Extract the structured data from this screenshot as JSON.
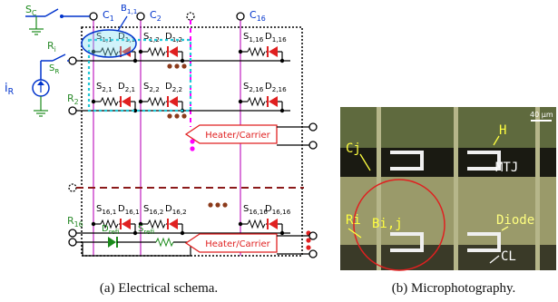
{
  "schematic": {
    "column_switch": {
      "base": "S",
      "sub": "C"
    },
    "row_switch": {
      "base": "S",
      "sub": "R"
    },
    "current": {
      "base": "i",
      "sub": "R"
    },
    "bit_line": {
      "base": "B",
      "sub": "1,1"
    },
    "columns": [
      {
        "base": "C",
        "sub": "1"
      },
      {
        "base": "C",
        "sub": "2"
      },
      {
        "base": "C",
        "sub": "16"
      }
    ],
    "rows": [
      {
        "base": "R",
        "sub": "i"
      },
      {
        "base": "R",
        "sub": "2"
      },
      {
        "base": "R",
        "sub": "16"
      }
    ],
    "cells": [
      {
        "s": {
          "base": "S",
          "sub": "1,1"
        },
        "d": {
          "base": "D",
          "sub": "1,1"
        }
      },
      {
        "s": {
          "base": "S",
          "sub": "1,2"
        },
        "d": {
          "base": "D",
          "sub": "1,2"
        }
      },
      {
        "s": {
          "base": "S",
          "sub": "1,16"
        },
        "d": {
          "base": "D",
          "sub": "1,16"
        }
      },
      {
        "s": {
          "base": "S",
          "sub": "2,1"
        },
        "d": {
          "base": "D",
          "sub": "2,1"
        }
      },
      {
        "s": {
          "base": "S",
          "sub": "2,2"
        },
        "d": {
          "base": "D",
          "sub": "2,2"
        }
      },
      {
        "s": {
          "base": "S",
          "sub": "2,16"
        },
        "d": {
          "base": "D",
          "sub": "2,16"
        }
      },
      {
        "s": {
          "base": "S",
          "sub": "16,1"
        },
        "d": {
          "base": "D",
          "sub": "16,1"
        }
      },
      {
        "s": {
          "base": "S",
          "sub": "16,2"
        },
        "d": {
          "base": "D",
          "sub": "16,2"
        }
      },
      {
        "s": {
          "base": "S",
          "sub": "16,16"
        },
        "d": {
          "base": "D",
          "sub": "16,16"
        }
      }
    ],
    "reference": {
      "d": {
        "base": "D",
        "sub": "refi"
      },
      "s": {
        "base": "S",
        "sub": "refi"
      }
    },
    "heaters": [
      "Heater/Carrier",
      "Heater/Carrier"
    ]
  },
  "photo": {
    "scale": "40 µm",
    "labels": [
      "Cj",
      "H",
      "MTJ",
      "Diode",
      "Ri",
      "Bi,j",
      "CL"
    ]
  },
  "captions": [
    "(a) Electrical schema.",
    "(b) Microphotography."
  ]
}
